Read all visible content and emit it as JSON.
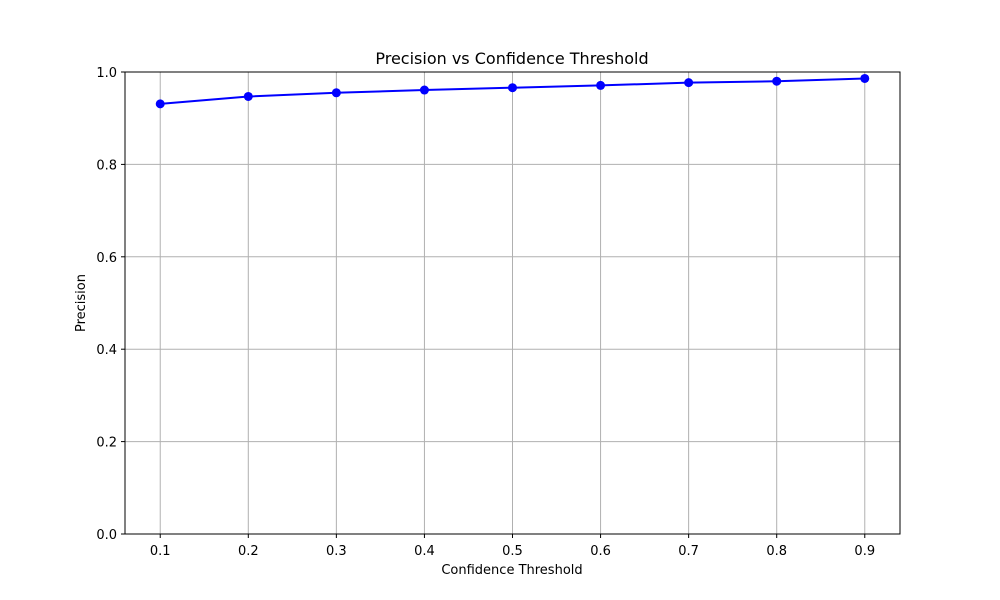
{
  "chart_data": {
    "type": "line",
    "title": "Precision vs Confidence Threshold",
    "xlabel": "Confidence Threshold",
    "ylabel": "Precision",
    "x": [
      0.1,
      0.2,
      0.3,
      0.4,
      0.5,
      0.6,
      0.7,
      0.8,
      0.9
    ],
    "series": [
      {
        "values": [
          0.931,
          0.947,
          0.955,
          0.961,
          0.966,
          0.971,
          0.977,
          0.98,
          0.986
        ],
        "color": "#0000ff",
        "marker": "circle"
      }
    ],
    "xlim": [
      0.06,
      0.94
    ],
    "ylim": [
      0.0,
      1.0
    ],
    "xticks": [
      "0.1",
      "0.2",
      "0.3",
      "0.4",
      "0.5",
      "0.6",
      "0.7",
      "0.8",
      "0.9"
    ],
    "yticks": [
      "0.0",
      "0.2",
      "0.4",
      "0.6",
      "0.8",
      "1.0"
    ],
    "grid": true,
    "grid_color": "#b0b0b0"
  }
}
